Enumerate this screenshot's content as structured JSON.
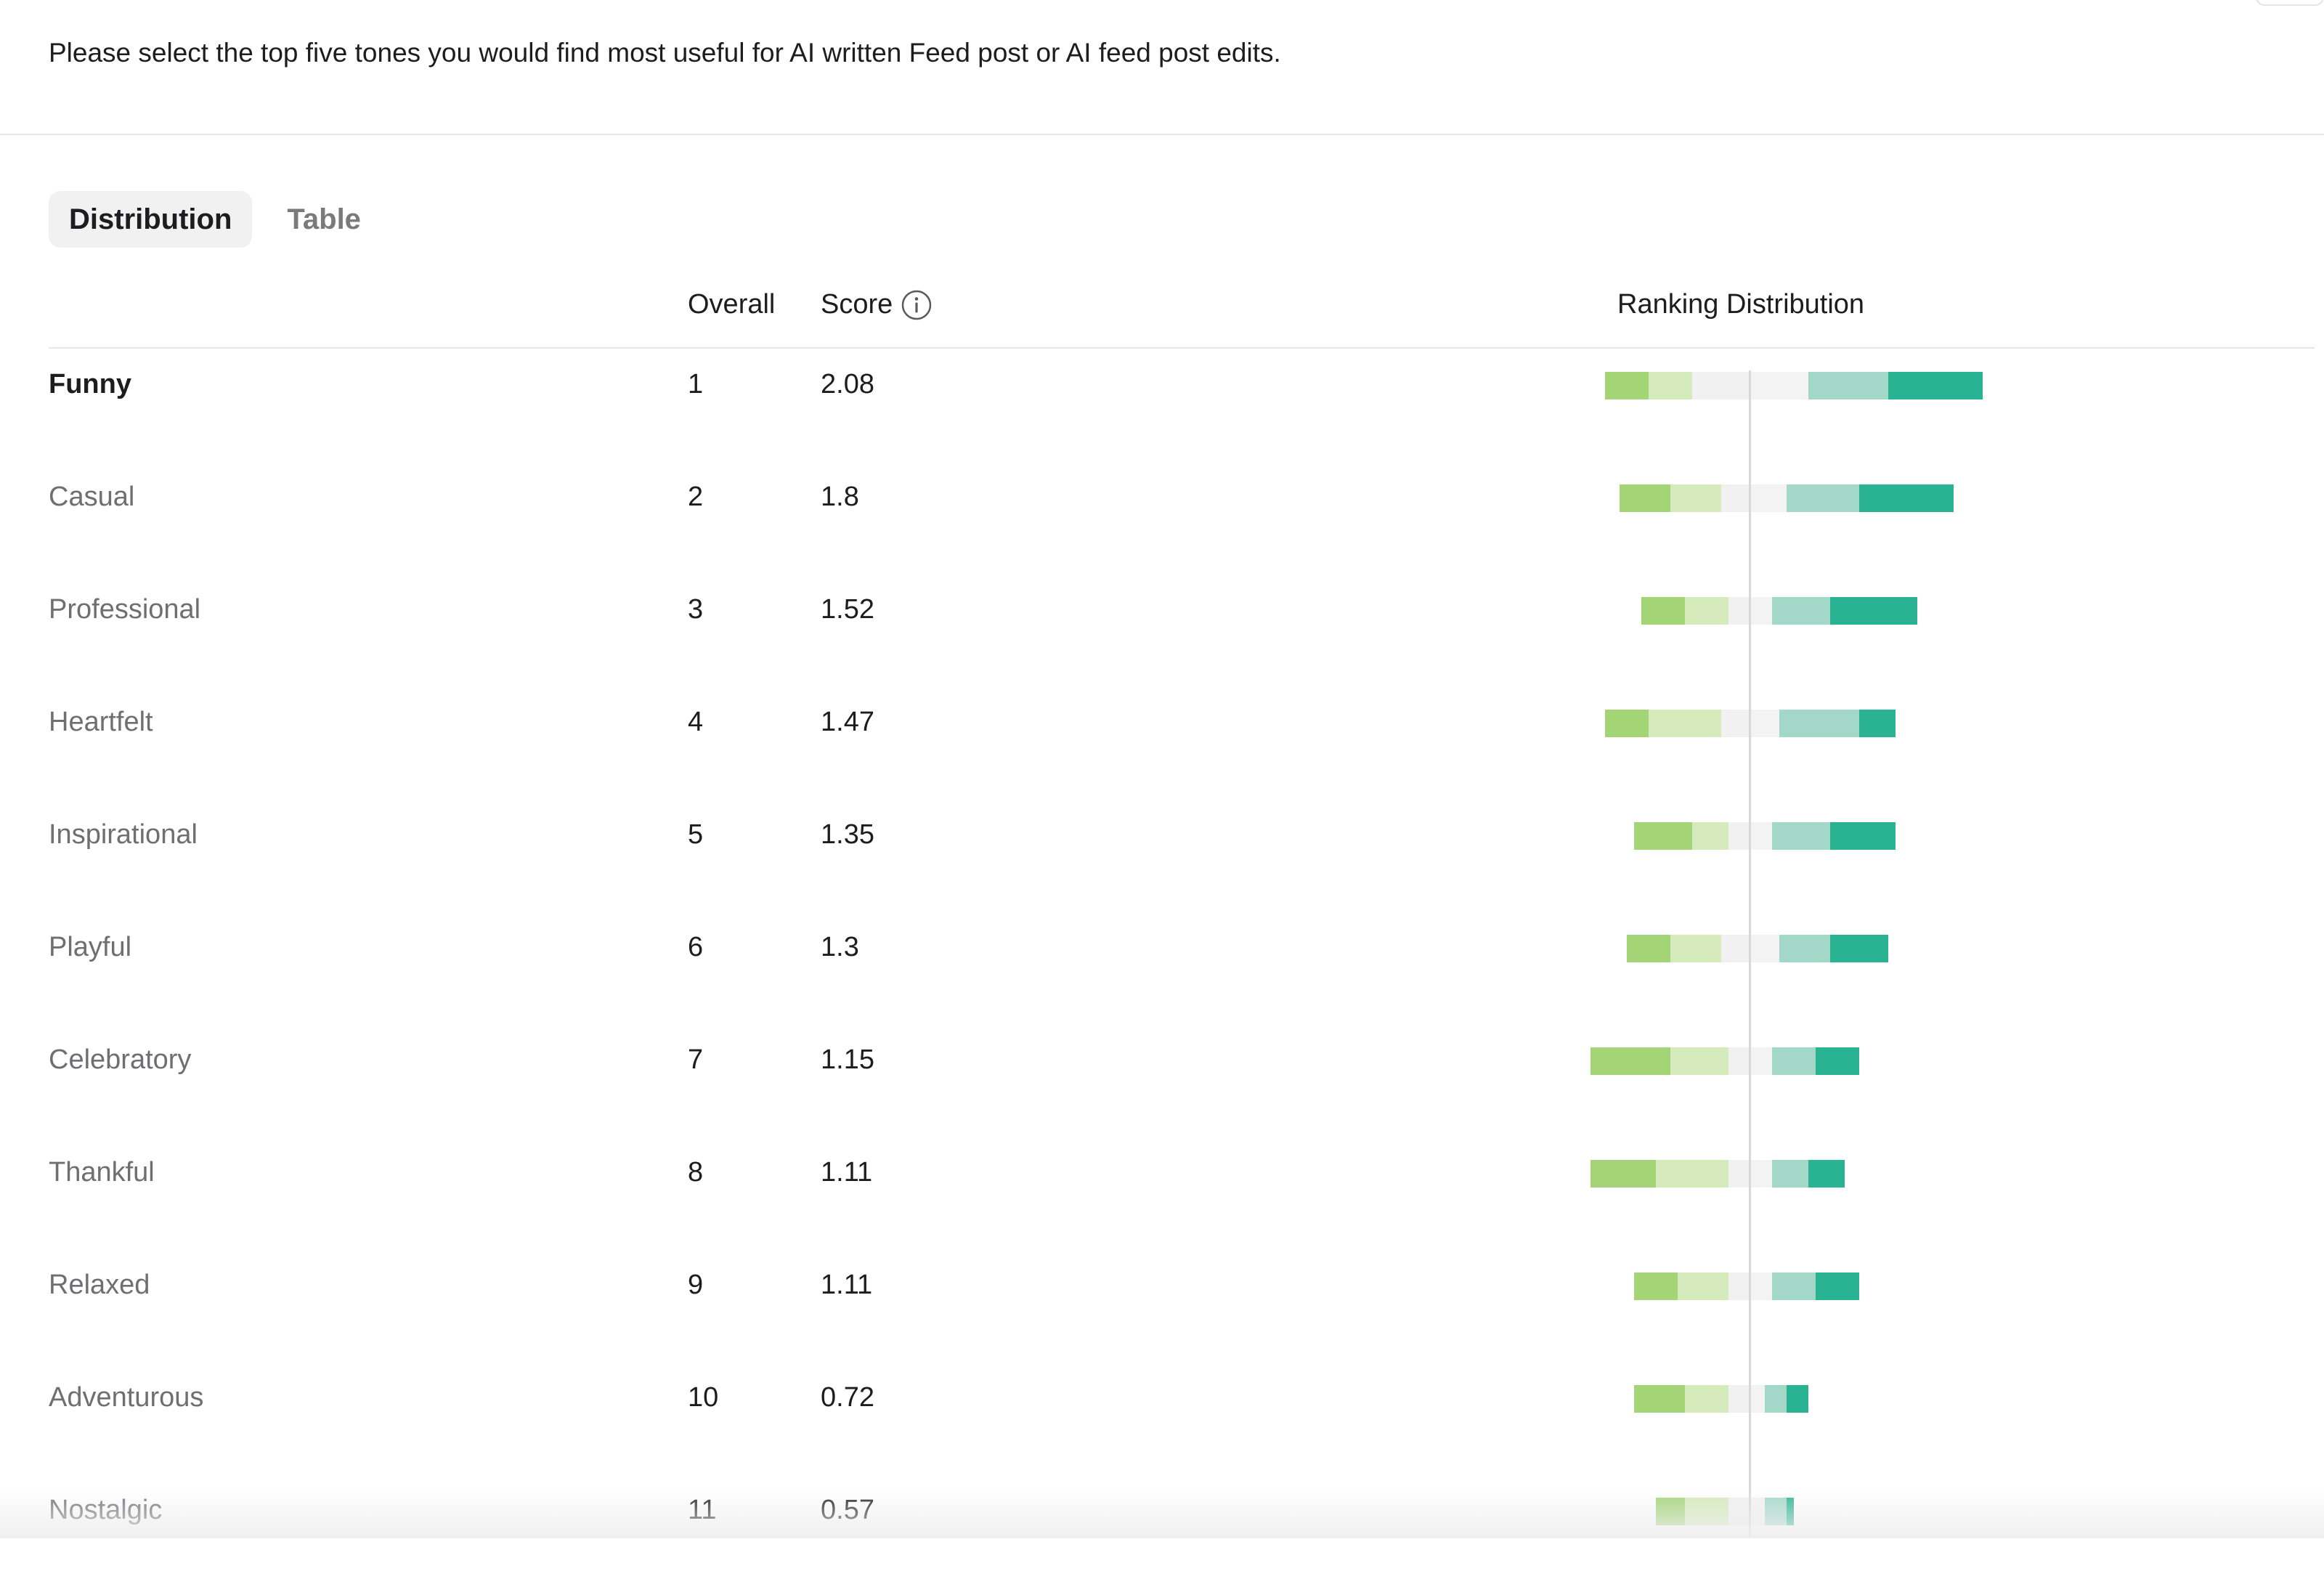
{
  "question": "Please select the top five tones you would find most useful for AI written Feed post or AI feed post edits.",
  "tabs": [
    {
      "label": "Distribution",
      "active": true
    },
    {
      "label": "Table",
      "active": false
    }
  ],
  "headers": {
    "overall": "Overall",
    "score": "Score",
    "score_icon": "info-icon",
    "distribution": "Ranking Distribution"
  },
  "colors": {
    "negative_strong": "#a3d577",
    "negative_light": "#d5ebbb",
    "neutral": "#f1f1f1",
    "positive_light": "#a3d8c8",
    "positive_strong": "#2ab393"
  },
  "rows": [
    {
      "label": "Funny",
      "overall": "1",
      "score": "2.08",
      "distribution": [
        6,
        6,
        8,
        8,
        11,
        13
      ]
    },
    {
      "label": "Casual",
      "overall": "2",
      "score": "1.8",
      "distribution": [
        7,
        7,
        4,
        5,
        10,
        13
      ]
    },
    {
      "label": "Professional",
      "overall": "3",
      "score": "1.52",
      "distribution": [
        6,
        6,
        3,
        3,
        8,
        12
      ]
    },
    {
      "label": "Heartfelt",
      "overall": "4",
      "score": "1.47",
      "distribution": [
        6,
        10,
        4,
        4,
        11,
        5
      ]
    },
    {
      "label": "Inspirational",
      "overall": "5",
      "score": "1.35",
      "distribution": [
        8,
        5,
        3,
        3,
        8,
        9
      ]
    },
    {
      "label": "Playful",
      "overall": "6",
      "score": "1.3",
      "distribution": [
        6,
        7,
        4,
        4,
        7,
        8
      ]
    },
    {
      "label": "Celebratory",
      "overall": "7",
      "score": "1.15",
      "distribution": [
        11,
        8,
        3,
        3,
        6,
        6
      ]
    },
    {
      "label": "Thankful",
      "overall": "8",
      "score": "1.11",
      "distribution": [
        9,
        10,
        3,
        3,
        5,
        5
      ]
    },
    {
      "label": "Relaxed",
      "overall": "9",
      "score": "1.11",
      "distribution": [
        6,
        7,
        3,
        3,
        6,
        6
      ]
    },
    {
      "label": "Adventurous",
      "overall": "10",
      "score": "0.72",
      "distribution": [
        7,
        6,
        3,
        2,
        3,
        3
      ]
    },
    {
      "label": "Nostalgic",
      "overall": "11",
      "score": "0.57",
      "distribution": [
        4,
        6,
        3,
        2,
        3,
        1
      ]
    }
  ]
}
